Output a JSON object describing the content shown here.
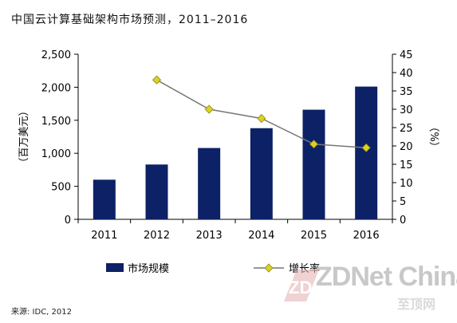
{
  "chart_data": {
    "type": "bar",
    "title": "中国云计算基础架构市场预测，2011–2016",
    "categories": [
      "2011",
      "2012",
      "2013",
      "2014",
      "2015",
      "2016"
    ],
    "series": [
      {
        "name": "市场规模",
        "type": "bar",
        "axis": "left",
        "values": [
          600,
          830,
          1080,
          1380,
          1660,
          2010
        ],
        "color": "#0d2166"
      },
      {
        "name": "增长率",
        "type": "line",
        "axis": "right",
        "values": [
          null,
          38,
          30,
          27.5,
          20.5,
          19.5
        ],
        "color": "#dcd21f",
        "line_color": "#777777"
      }
    ],
    "y_left": {
      "label": "（百万美元）",
      "ylim": [
        0,
        2500
      ],
      "ticks": [
        "0",
        "500",
        "1,000",
        "1,500",
        "2,000",
        "2,500"
      ],
      "tick_values": [
        0,
        500,
        1000,
        1500,
        2000,
        2500
      ]
    },
    "y_right": {
      "label": "（%）",
      "ylim": [
        0,
        45
      ],
      "ticks": [
        "0",
        "5",
        "10",
        "15",
        "20",
        "25",
        "30",
        "35",
        "40",
        "45"
      ],
      "tick_values": [
        0,
        5,
        10,
        15,
        20,
        25,
        30,
        35,
        40,
        45
      ]
    },
    "grid": false,
    "legend": "bottom"
  },
  "source": "来源: IDC, 2012",
  "watermark": {
    "brand": "ZDNet China",
    "sub": "至顶网",
    "logo": "ZD"
  }
}
